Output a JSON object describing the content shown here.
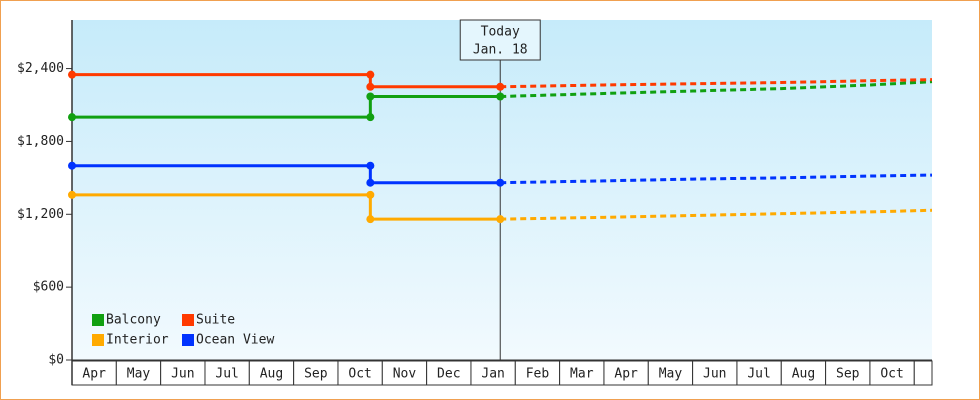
{
  "chart_data": {
    "type": "line",
    "categories": [
      "Apr",
      "May",
      "Jun",
      "Jul",
      "Aug",
      "Sep",
      "Oct",
      "Nov",
      "Dec",
      "Jan",
      "Feb",
      "Mar",
      "Apr",
      "May",
      "Jun",
      "Jul",
      "Aug",
      "Sep",
      "Oct",
      null
    ],
    "xlim": [
      0,
      19.4
    ],
    "ylim": [
      0,
      2800
    ],
    "yticks": [
      {
        "value": 0,
        "label": "$0"
      },
      {
        "value": 600,
        "label": "$600"
      },
      {
        "value": 1200,
        "label": "$1,200"
      },
      {
        "value": 1800,
        "label": "$1,800"
      },
      {
        "value": 2400,
        "label": "$2,400"
      }
    ],
    "grid": false,
    "legend": "bottom-left",
    "x": [
      0,
      6.73,
      6.73,
      9.66
    ],
    "forecast_x": [
      9.66,
      12,
      14,
      16,
      18,
      19.4
    ],
    "today": {
      "x": 9.66,
      "label": [
        "Today",
        "Jan. 18"
      ]
    },
    "series": [
      {
        "name": "Balcony",
        "color": "#11a011",
        "values": [
          2000,
          2000,
          2170,
          2170
        ],
        "forecast": [
          2170,
          2195,
          2215,
          2235,
          2265,
          2292
        ]
      },
      {
        "name": "Suite",
        "color": "#ff3a00",
        "values": [
          2350,
          2350,
          2250,
          2250
        ],
        "forecast": [
          2250,
          2265,
          2275,
          2285,
          2300,
          2309
        ]
      },
      {
        "name": "Interior",
        "color": "#ffaa00",
        "values": [
          1360,
          1360,
          1160,
          1160
        ],
        "forecast": [
          1160,
          1175,
          1190,
          1205,
          1220,
          1233
        ]
      },
      {
        "name": "Ocean View",
        "color": "#0033ff",
        "values": [
          1600,
          1600,
          1460,
          1460
        ],
        "forecast": [
          1460,
          1475,
          1490,
          1500,
          1515,
          1523
        ]
      }
    ]
  }
}
